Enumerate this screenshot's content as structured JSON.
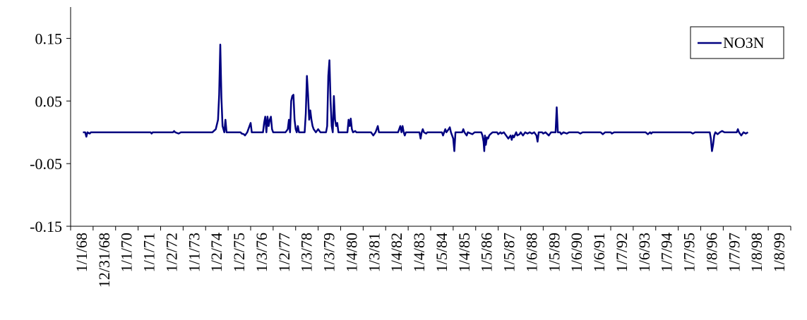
{
  "colors": {
    "series": "#000080",
    "axis": "#000000",
    "background": "#ffffff"
  },
  "chart_data": {
    "type": "line",
    "title": "",
    "xlabel": "",
    "ylabel": "",
    "ylim": [
      -0.15,
      0.2
    ],
    "y_ticks": [
      "0.15",
      "0.05",
      "-0.05",
      "-0.15"
    ],
    "x_ticks": [
      "1/1/68",
      "12/31/68",
      "1/1/70",
      "1/1/71",
      "1/2/72",
      "1/1/73",
      "1/2/74",
      "1/2/75",
      "1/3/76",
      "1/2/77",
      "1/3/78",
      "1/3/79",
      "1/4/80",
      "1/3/81",
      "1/4/82",
      "1/4/83",
      "1/5/84",
      "1/4/85",
      "1/5/86",
      "1/5/87",
      "1/6/88",
      "1/5/89",
      "1/6/90",
      "1/6/91",
      "1/7/92",
      "1/6/93",
      "1/7/94",
      "1/7/95",
      "1/8/96",
      "1/7/97",
      "1/8/98",
      "1/8/99"
    ],
    "grid": false,
    "legend_position": "top-right",
    "series": [
      {
        "name": "NO3N",
        "x_unit": "years since 1/1/68",
        "points": [
          [
            0.0,
            0.0
          ],
          [
            0.1,
            0.0
          ],
          [
            0.15,
            -0.007
          ],
          [
            0.2,
            0.0
          ],
          [
            0.3,
            -0.002
          ],
          [
            0.35,
            0.0
          ],
          [
            1.0,
            0.0
          ],
          [
            2.0,
            0.0
          ],
          [
            3.0,
            0.0
          ],
          [
            3.05,
            -0.002
          ],
          [
            3.1,
            0.0
          ],
          [
            4.0,
            0.0
          ],
          [
            4.05,
            0.002
          ],
          [
            4.1,
            0.0
          ],
          [
            4.25,
            -0.002
          ],
          [
            4.35,
            0.0
          ],
          [
            5.0,
            0.0
          ],
          [
            5.75,
            0.0
          ],
          [
            5.9,
            0.005
          ],
          [
            6.0,
            0.02
          ],
          [
            6.05,
            0.06
          ],
          [
            6.1,
            0.14
          ],
          [
            6.15,
            0.055
          ],
          [
            6.2,
            0.01
          ],
          [
            6.28,
            0.0
          ],
          [
            6.33,
            0.02
          ],
          [
            6.38,
            0.0
          ],
          [
            7.0,
            0.0
          ],
          [
            7.05,
            -0.002
          ],
          [
            7.15,
            -0.003
          ],
          [
            7.2,
            -0.005
          ],
          [
            7.3,
            0.0
          ],
          [
            7.4,
            0.01
          ],
          [
            7.45,
            0.015
          ],
          [
            7.5,
            0.0
          ],
          [
            8.0,
            0.0
          ],
          [
            8.05,
            0.015
          ],
          [
            8.1,
            0.025
          ],
          [
            8.15,
            0.0
          ],
          [
            8.2,
            0.025
          ],
          [
            8.25,
            0.01
          ],
          [
            8.3,
            0.02
          ],
          [
            8.35,
            0.025
          ],
          [
            8.4,
            0.005
          ],
          [
            8.45,
            0.0
          ],
          [
            9.0,
            0.0
          ],
          [
            9.1,
            0.005
          ],
          [
            9.15,
            0.02
          ],
          [
            9.2,
            0.0
          ],
          [
            9.25,
            0.05
          ],
          [
            9.3,
            0.058
          ],
          [
            9.35,
            0.06
          ],
          [
            9.4,
            0.02
          ],
          [
            9.45,
            0.005
          ],
          [
            9.5,
            0.0
          ],
          [
            9.55,
            0.01
          ],
          [
            9.6,
            0.0
          ],
          [
            9.85,
            0.0
          ],
          [
            9.9,
            0.03
          ],
          [
            9.95,
            0.09
          ],
          [
            10.0,
            0.06
          ],
          [
            10.05,
            0.02
          ],
          [
            10.1,
            0.035
          ],
          [
            10.15,
            0.02
          ],
          [
            10.2,
            0.01
          ],
          [
            10.25,
            0.005
          ],
          [
            10.35,
            0.0
          ],
          [
            10.45,
            0.005
          ],
          [
            10.55,
            0.0
          ],
          [
            10.8,
            0.0
          ],
          [
            10.85,
            0.01
          ],
          [
            10.9,
            0.09
          ],
          [
            10.95,
            0.115
          ],
          [
            11.0,
            0.05
          ],
          [
            11.05,
            0.01
          ],
          [
            11.1,
            0.0
          ],
          [
            11.15,
            0.058
          ],
          [
            11.2,
            0.02
          ],
          [
            11.25,
            0.01
          ],
          [
            11.3,
            0.015
          ],
          [
            11.35,
            0.0
          ],
          [
            11.75,
            0.0
          ],
          [
            11.8,
            0.02
          ],
          [
            11.85,
            0.01
          ],
          [
            11.9,
            0.022
          ],
          [
            11.95,
            0.005
          ],
          [
            12.0,
            0.0
          ],
          [
            12.1,
            0.002
          ],
          [
            12.15,
            0.0
          ],
          [
            12.8,
            0.0
          ],
          [
            12.9,
            -0.005
          ],
          [
            13.0,
            0.0
          ],
          [
            13.05,
            0.005
          ],
          [
            13.1,
            0.01
          ],
          [
            13.15,
            0.0
          ],
          [
            14.0,
            0.0
          ],
          [
            14.05,
            0.005
          ],
          [
            14.1,
            0.01
          ],
          [
            14.15,
            0.0
          ],
          [
            14.2,
            0.01
          ],
          [
            14.25,
            0.0
          ],
          [
            14.3,
            -0.005
          ],
          [
            14.35,
            0.0
          ],
          [
            14.95,
            0.0
          ],
          [
            15.0,
            -0.01
          ],
          [
            15.05,
            0.0
          ],
          [
            15.1,
            0.005
          ],
          [
            15.15,
            0.0
          ],
          [
            15.25,
            -0.002
          ],
          [
            15.3,
            0.0
          ],
          [
            15.95,
            0.0
          ],
          [
            16.0,
            -0.005
          ],
          [
            16.05,
            0.0
          ],
          [
            16.1,
            0.005
          ],
          [
            16.15,
            0.0
          ],
          [
            16.25,
            0.005
          ],
          [
            16.3,
            0.008
          ],
          [
            16.35,
            0.0
          ],
          [
            16.45,
            -0.01
          ],
          [
            16.5,
            -0.03
          ],
          [
            16.55,
            0.0
          ],
          [
            16.85,
            0.0
          ],
          [
            16.9,
            0.005
          ],
          [
            16.95,
            0.0
          ],
          [
            17.05,
            -0.005
          ],
          [
            17.1,
            0.0
          ],
          [
            17.3,
            -0.003
          ],
          [
            17.4,
            0.0
          ],
          [
            17.7,
            0.0
          ],
          [
            17.75,
            -0.005
          ],
          [
            17.8,
            -0.015
          ],
          [
            17.83,
            -0.03
          ],
          [
            17.86,
            -0.005
          ],
          [
            17.9,
            -0.02
          ],
          [
            17.95,
            -0.008
          ],
          [
            18.0,
            -0.01
          ],
          [
            18.05,
            -0.005
          ],
          [
            18.1,
            -0.003
          ],
          [
            18.2,
            0.0
          ],
          [
            18.4,
            0.0
          ],
          [
            18.45,
            -0.003
          ],
          [
            18.55,
            0.0
          ],
          [
            18.6,
            -0.002
          ],
          [
            18.7,
            0.0
          ],
          [
            18.8,
            -0.005
          ],
          [
            18.9,
            -0.01
          ],
          [
            19.0,
            -0.005
          ],
          [
            19.05,
            -0.012
          ],
          [
            19.1,
            -0.005
          ],
          [
            19.15,
            -0.008
          ],
          [
            19.25,
            0.0
          ],
          [
            19.3,
            -0.005
          ],
          [
            19.4,
            -0.003
          ],
          [
            19.45,
            0.0
          ],
          [
            19.55,
            -0.005
          ],
          [
            19.65,
            0.0
          ],
          [
            19.75,
            -0.002
          ],
          [
            19.85,
            0.0
          ],
          [
            19.95,
            -0.002
          ],
          [
            20.05,
            0.0
          ],
          [
            20.15,
            -0.005
          ],
          [
            20.2,
            -0.015
          ],
          [
            20.25,
            0.0
          ],
          [
            20.4,
            0.0
          ],
          [
            20.45,
            -0.002
          ],
          [
            20.55,
            0.0
          ],
          [
            20.7,
            -0.005
          ],
          [
            20.8,
            0.0
          ],
          [
            21.0,
            0.0
          ],
          [
            21.05,
            0.04
          ],
          [
            21.1,
            0.0
          ],
          [
            21.2,
            0.0
          ],
          [
            21.25,
            -0.003
          ],
          [
            21.35,
            0.0
          ],
          [
            21.5,
            -0.002
          ],
          [
            21.6,
            0.0
          ],
          [
            22.0,
            0.0
          ],
          [
            22.1,
            -0.002
          ],
          [
            22.2,
            0.0
          ],
          [
            23.0,
            0.0
          ],
          [
            23.1,
            -0.003
          ],
          [
            23.2,
            0.0
          ],
          [
            23.45,
            0.0
          ],
          [
            23.5,
            -0.002
          ],
          [
            23.6,
            0.0
          ],
          [
            24.0,
            0.0
          ],
          [
            25.0,
            0.0
          ],
          [
            25.1,
            -0.003
          ],
          [
            25.2,
            0.0
          ],
          [
            25.25,
            -0.002
          ],
          [
            25.3,
            0.0
          ],
          [
            26.0,
            0.0
          ],
          [
            27.0,
            0.0
          ],
          [
            27.1,
            -0.002
          ],
          [
            27.2,
            0.0
          ],
          [
            27.85,
            0.0
          ],
          [
            27.9,
            -0.01
          ],
          [
            27.95,
            -0.03
          ],
          [
            28.0,
            -0.02
          ],
          [
            28.05,
            -0.005
          ],
          [
            28.1,
            0.0
          ],
          [
            28.2,
            -0.003
          ],
          [
            28.3,
            0.0
          ],
          [
            28.4,
            0.002
          ],
          [
            28.5,
            0.0
          ],
          [
            29.0,
            0.0
          ],
          [
            29.05,
            0.0
          ],
          [
            29.1,
            0.005
          ],
          [
            29.15,
            0.0
          ],
          [
            29.25,
            -0.005
          ],
          [
            29.35,
            0.0
          ],
          [
            29.45,
            -0.002
          ],
          [
            29.55,
            0.0
          ]
        ]
      }
    ]
  }
}
